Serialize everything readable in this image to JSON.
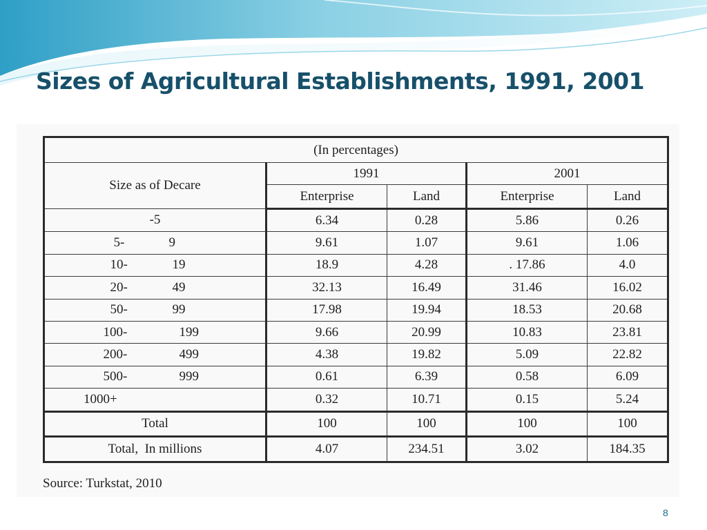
{
  "slide": {
    "title": "Sizes of Agricultural Establishments, 1991, 2001",
    "page_number": "8",
    "source": "Source: Turkstat, 2010",
    "colors": {
      "title": "#17506a",
      "banner_light": "#d8f1f6",
      "banner_mid": "#8fd3e6",
      "banner_dark": "#3aa9cc"
    }
  },
  "table": {
    "caption": "(In percentages)",
    "size_header": "Size as of Decare",
    "years": [
      "1991",
      "2001"
    ],
    "subheaders": [
      "Enterprise",
      "Land",
      "Enterprise",
      "Land"
    ],
    "rows": [
      {
        "from": "-5",
        "to": "",
        "values": [
          "6.34",
          "0.28",
          "5.86",
          "0.26"
        ]
      },
      {
        "from": "5-",
        "to": "9",
        "values": [
          "9.61",
          "1.07",
          "9.61",
          "1.06"
        ]
      },
      {
        "from": "10-",
        "to": "19",
        "values": [
          "18.9",
          "4.28",
          ". 17.86",
          "4.0"
        ]
      },
      {
        "from": "20-",
        "to": "49",
        "values": [
          "32.13",
          "16.49",
          "31.46",
          "16.02"
        ]
      },
      {
        "from": "50-",
        "to": "99",
        "values": [
          "17.98",
          "19.94",
          "18.53",
          "20.68"
        ]
      },
      {
        "from": "100-",
        "to": "199",
        "values": [
          "9.66",
          "20.99",
          "10.83",
          "23.81"
        ]
      },
      {
        "from": "200-",
        "to": "499",
        "values": [
          "4.38",
          "19.82",
          "5.09",
          "22.82"
        ]
      },
      {
        "from": "500-",
        "to": "999",
        "values": [
          "0.61",
          "6.39",
          "0.58",
          "6.09"
        ]
      },
      {
        "from": "1000+",
        "to": "",
        "values": [
          "0.32",
          "10.71",
          "0.15",
          "5.24"
        ]
      }
    ],
    "total": {
      "label": "Total",
      "values": [
        "100",
        "100",
        "100",
        "100"
      ]
    },
    "total_millions": {
      "label": "Total,  In millions",
      "values": [
        "4.07",
        "234.51",
        "3.02",
        "184.35"
      ]
    }
  }
}
